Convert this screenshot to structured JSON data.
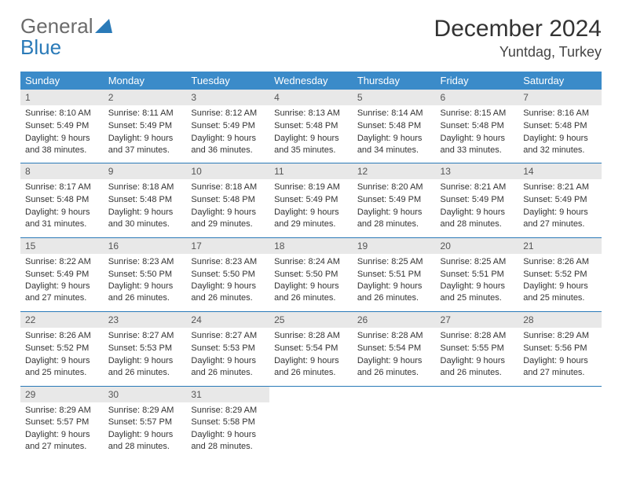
{
  "logo": {
    "word1": "General",
    "word2": "Blue"
  },
  "title": {
    "month": "December 2024",
    "location": "Yuntdag, Turkey"
  },
  "weekdays": [
    "Sunday",
    "Monday",
    "Tuesday",
    "Wednesday",
    "Thursday",
    "Friday",
    "Saturday"
  ],
  "style": {
    "header_bg": "#3b8bc9",
    "header_fg": "#ffffff",
    "daynum_bg": "#e8e8e8",
    "daynum_fg": "#555555",
    "week_divider": "#2a7ab8",
    "cell_font_size": 11,
    "header_font_size": 13,
    "title_font_size": 30,
    "location_font_size": 18
  },
  "weeks": [
    [
      {
        "n": "1",
        "sr": "8:10 AM",
        "ss": "5:49 PM",
        "dl": "9 hours and 38 minutes."
      },
      {
        "n": "2",
        "sr": "8:11 AM",
        "ss": "5:49 PM",
        "dl": "9 hours and 37 minutes."
      },
      {
        "n": "3",
        "sr": "8:12 AM",
        "ss": "5:49 PM",
        "dl": "9 hours and 36 minutes."
      },
      {
        "n": "4",
        "sr": "8:13 AM",
        "ss": "5:48 PM",
        "dl": "9 hours and 35 minutes."
      },
      {
        "n": "5",
        "sr": "8:14 AM",
        "ss": "5:48 PM",
        "dl": "9 hours and 34 minutes."
      },
      {
        "n": "6",
        "sr": "8:15 AM",
        "ss": "5:48 PM",
        "dl": "9 hours and 33 minutes."
      },
      {
        "n": "7",
        "sr": "8:16 AM",
        "ss": "5:48 PM",
        "dl": "9 hours and 32 minutes."
      }
    ],
    [
      {
        "n": "8",
        "sr": "8:17 AM",
        "ss": "5:48 PM",
        "dl": "9 hours and 31 minutes."
      },
      {
        "n": "9",
        "sr": "8:18 AM",
        "ss": "5:48 PM",
        "dl": "9 hours and 30 minutes."
      },
      {
        "n": "10",
        "sr": "8:18 AM",
        "ss": "5:48 PM",
        "dl": "9 hours and 29 minutes."
      },
      {
        "n": "11",
        "sr": "8:19 AM",
        "ss": "5:49 PM",
        "dl": "9 hours and 29 minutes."
      },
      {
        "n": "12",
        "sr": "8:20 AM",
        "ss": "5:49 PM",
        "dl": "9 hours and 28 minutes."
      },
      {
        "n": "13",
        "sr": "8:21 AM",
        "ss": "5:49 PM",
        "dl": "9 hours and 28 minutes."
      },
      {
        "n": "14",
        "sr": "8:21 AM",
        "ss": "5:49 PM",
        "dl": "9 hours and 27 minutes."
      }
    ],
    [
      {
        "n": "15",
        "sr": "8:22 AM",
        "ss": "5:49 PM",
        "dl": "9 hours and 27 minutes."
      },
      {
        "n": "16",
        "sr": "8:23 AM",
        "ss": "5:50 PM",
        "dl": "9 hours and 26 minutes."
      },
      {
        "n": "17",
        "sr": "8:23 AM",
        "ss": "5:50 PM",
        "dl": "9 hours and 26 minutes."
      },
      {
        "n": "18",
        "sr": "8:24 AM",
        "ss": "5:50 PM",
        "dl": "9 hours and 26 minutes."
      },
      {
        "n": "19",
        "sr": "8:25 AM",
        "ss": "5:51 PM",
        "dl": "9 hours and 26 minutes."
      },
      {
        "n": "20",
        "sr": "8:25 AM",
        "ss": "5:51 PM",
        "dl": "9 hours and 25 minutes."
      },
      {
        "n": "21",
        "sr": "8:26 AM",
        "ss": "5:52 PM",
        "dl": "9 hours and 25 minutes."
      }
    ],
    [
      {
        "n": "22",
        "sr": "8:26 AM",
        "ss": "5:52 PM",
        "dl": "9 hours and 25 minutes."
      },
      {
        "n": "23",
        "sr": "8:27 AM",
        "ss": "5:53 PM",
        "dl": "9 hours and 26 minutes."
      },
      {
        "n": "24",
        "sr": "8:27 AM",
        "ss": "5:53 PM",
        "dl": "9 hours and 26 minutes."
      },
      {
        "n": "25",
        "sr": "8:28 AM",
        "ss": "5:54 PM",
        "dl": "9 hours and 26 minutes."
      },
      {
        "n": "26",
        "sr": "8:28 AM",
        "ss": "5:54 PM",
        "dl": "9 hours and 26 minutes."
      },
      {
        "n": "27",
        "sr": "8:28 AM",
        "ss": "5:55 PM",
        "dl": "9 hours and 26 minutes."
      },
      {
        "n": "28",
        "sr": "8:29 AM",
        "ss": "5:56 PM",
        "dl": "9 hours and 27 minutes."
      }
    ],
    [
      {
        "n": "29",
        "sr": "8:29 AM",
        "ss": "5:57 PM",
        "dl": "9 hours and 27 minutes."
      },
      {
        "n": "30",
        "sr": "8:29 AM",
        "ss": "5:57 PM",
        "dl": "9 hours and 28 minutes."
      },
      {
        "n": "31",
        "sr": "8:29 AM",
        "ss": "5:58 PM",
        "dl": "9 hours and 28 minutes."
      },
      null,
      null,
      null,
      null
    ]
  ],
  "labels": {
    "sunrise": "Sunrise:",
    "sunset": "Sunset:",
    "daylight": "Daylight:"
  }
}
